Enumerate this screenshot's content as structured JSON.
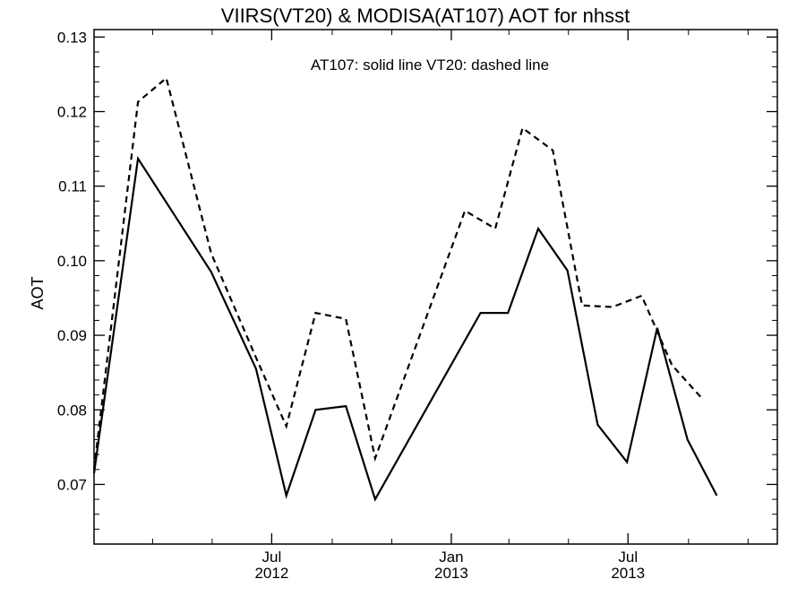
{
  "chart_data": {
    "type": "line",
    "title": "VIIRS(VT20) & MODISA(AT107)  AOT for nhsst",
    "ylabel": "AOT",
    "xlabel": "",
    "annotation": "AT107: solid line   VT20: dashed line",
    "xlim": [
      "2012-01-01",
      "2013-12-01"
    ],
    "ylim": [
      0.062,
      0.131
    ],
    "y_ticks": [
      {
        "value": 0.07,
        "label": "0.07"
      },
      {
        "value": 0.08,
        "label": "0.08"
      },
      {
        "value": 0.09,
        "label": "0.09"
      },
      {
        "value": 0.1,
        "label": "0.10"
      },
      {
        "value": 0.11,
        "label": "0.11"
      },
      {
        "value": 0.12,
        "label": "0.12"
      },
      {
        "value": 0.13,
        "label": "0.13"
      }
    ],
    "x_ticks": [
      {
        "date": "2012-07-01",
        "label1": "Jul",
        "label2": "2012"
      },
      {
        "date": "2013-01-01",
        "label1": "Jan",
        "label2": "2013"
      },
      {
        "date": "2013-07-01",
        "label1": "Jul",
        "label2": "2013"
      }
    ],
    "x_minor_ticks": [
      "2012-03-01",
      "2012-05-01",
      "2012-09-01",
      "2012-11-01",
      "2013-03-01",
      "2013-05-01",
      "2013-09-01",
      "2013-11-01"
    ],
    "series": [
      {
        "name": "AT107",
        "style": "solid",
        "color": "#000000",
        "x": [
          "2012-01-01",
          "2012-02-15",
          "2012-04-30",
          "2012-06-15",
          "2012-07-16",
          "2012-08-15",
          "2012-09-15",
          "2012-10-15",
          "2013-01-31",
          "2013-02-28",
          "2013-03-31",
          "2013-04-30",
          "2013-05-31",
          "2013-06-30",
          "2013-07-31",
          "2013-08-31",
          "2013-09-30",
          "2013-10-31",
          "2013-12-01"
        ],
        "y": [
          0.0715,
          0.1137,
          0.0985,
          0.0855,
          0.0685,
          0.08,
          0.0805,
          0.068,
          0.093,
          0.093,
          0.1043,
          0.0987,
          0.078,
          0.073,
          0.091,
          0.076,
          0.0685,
          null,
          null
        ]
      },
      {
        "name": "VT20",
        "style": "dashed",
        "color": "#000000",
        "x": [
          "2012-01-01",
          "2012-02-15",
          "2012-03-15",
          "2012-04-30",
          "2012-06-15",
          "2012-07-16",
          "2012-08-15",
          "2012-09-15",
          "2012-10-15",
          "2013-01-15",
          "2013-02-15",
          "2013-03-15",
          "2013-04-15",
          "2013-05-15",
          "2013-06-15",
          "2013-07-15",
          "2013-08-15",
          "2013-09-15",
          "2013-10-15",
          "2013-12-01"
        ],
        "y": [
          0.072,
          0.1213,
          0.1245,
          0.101,
          0.087,
          0.0778,
          0.093,
          0.0922,
          0.0735,
          0.1067,
          0.1043,
          0.1178,
          0.1148,
          0.094,
          0.0938,
          0.0953,
          0.086,
          0.0815,
          null,
          null
        ]
      }
    ]
  }
}
